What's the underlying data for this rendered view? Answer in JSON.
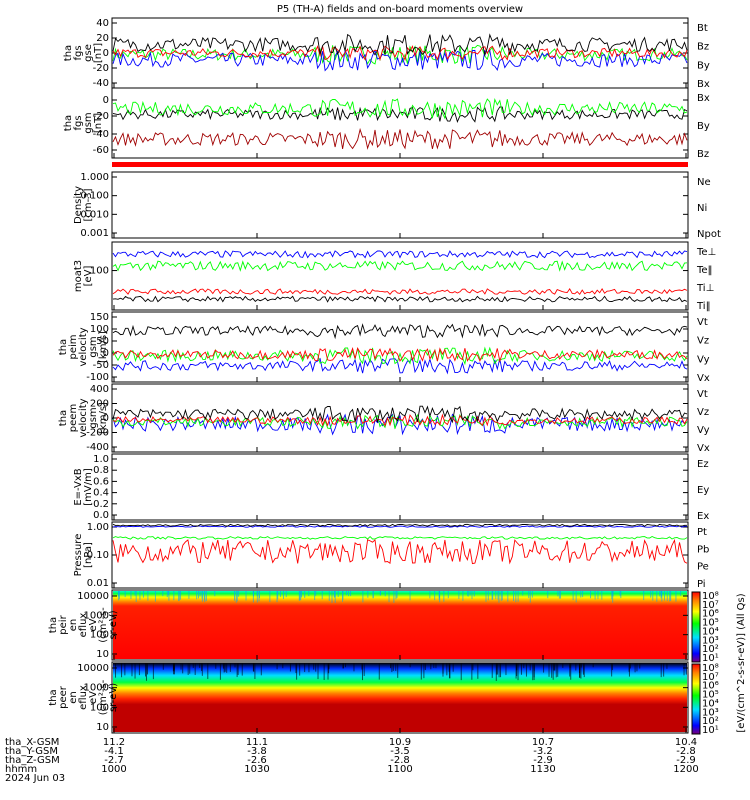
{
  "title": "P5 (TH-A) fields and on-board moments overview",
  "colors": {
    "black": "#000000",
    "red": "#ff0000",
    "green": "#00ff00",
    "blue": "#0000ff",
    "darkred": "#a00000"
  },
  "chart_data": {
    "type": "line",
    "x_axis": {
      "label_rows": [
        "tha_X-GSM",
        "tha_Y-GSM",
        "tha_Z-GSM",
        "hhmm",
        "2024 Jun 03"
      ],
      "ticks": [
        {
          "x": "11.2",
          "y": "-4.1",
          "z": "-2.7",
          "hhmm": "1000"
        },
        {
          "x": "11.1",
          "y": "-3.8",
          "z": "-2.6",
          "hhmm": "1030"
        },
        {
          "x": "10.9",
          "y": "-3.5",
          "z": "-2.8",
          "hhmm": "1100"
        },
        {
          "x": "10.7",
          "y": "-3.2",
          "z": "-2.9",
          "hhmm": "1130"
        },
        {
          "x": "10.4",
          "y": "-2.8",
          "z": "-2.9",
          "hhmm": "1200"
        }
      ]
    },
    "panels": [
      {
        "ylabel": [
          "tha",
          "fgs",
          "gse",
          "[nT]"
        ],
        "ylim": [
          -40,
          50
        ],
        "yticks": [
          "40",
          "20",
          "0",
          "-20",
          "-40"
        ],
        "legend": [
          {
            "name": "Bt",
            "color": "#000000"
          },
          {
            "name": "Bz",
            "color": "#ff0000"
          },
          {
            "name": "By",
            "color": "#00ff00"
          },
          {
            "name": "Bx",
            "color": "#0000ff"
          }
        ],
        "series": [
          {
            "color": "#00ff00",
            "base": 3,
            "amp": 8
          },
          {
            "color": "#0000ff",
            "base": -4,
            "amp": 9
          },
          {
            "color": "#ff0000",
            "base": 5,
            "amp": 6
          },
          {
            "color": "#000000",
            "base": 16,
            "amp": 9
          }
        ]
      },
      {
        "ylabel": [
          "tha",
          "fgs",
          "gsm",
          "[nT]"
        ],
        "ylim": [
          -75,
          10
        ],
        "yticks": [
          "-20",
          "-40",
          "-60",
          "0"
        ],
        "legend": [
          {
            "name": "Bx",
            "color": "#000000"
          },
          {
            "name": "By",
            "color": "#00ff00"
          },
          {
            "name": "Bz",
            "color": "#a00000"
          }
        ],
        "series": [
          {
            "color": "#a00000",
            "base": -52,
            "amp": 8
          },
          {
            "color": "#000000",
            "base": -22,
            "amp": 6
          },
          {
            "color": "#00ff00",
            "base": -15,
            "amp": 8
          }
        ]
      },
      {
        "ylabel": [
          "Density",
          "[cm-3]"
        ],
        "ylim": [
          0.001,
          1.0
        ],
        "log": true,
        "yticks": [
          "1.000",
          "0.100",
          "0.010",
          "0.001"
        ],
        "legend": [
          {
            "name": "Ne",
            "color": "#ff0000"
          },
          {
            "name": "Ni",
            "color": "#000000"
          },
          {
            "name": "Npot",
            "color": "#0000ff"
          }
        ],
        "series": []
      },
      {
        "ylabel": [
          "moat3",
          "[eV]"
        ],
        "ylim": [
          10,
          900
        ],
        "log": true,
        "yticks": [
          "100"
        ],
        "legend": [
          {
            "name": "Te⊥",
            "color": "#ff0000"
          },
          {
            "name": "Te‖",
            "color": "#000000"
          },
          {
            "name": "Ti⊥",
            "color": "#ff0000"
          },
          {
            "name": "Ti‖",
            "color": "#00ff00"
          }
        ],
        "series": [
          {
            "color": "#0000ff",
            "base": 0.82,
            "amp": 0.05
          },
          {
            "color": "#00ff00",
            "base": 0.65,
            "amp": 0.07
          },
          {
            "color": "#ff0000",
            "base": 0.27,
            "amp": 0.04
          },
          {
            "color": "#000000",
            "base": 0.16,
            "amp": 0.04
          }
        ]
      },
      {
        "ylabel": [
          "tha",
          "peim",
          "velocity",
          "gsm",
          "[km/s]"
        ],
        "ylim": [
          -120,
          160
        ],
        "yticks": [
          "150",
          "100",
          "50",
          "0",
          "-50",
          "-100"
        ],
        "legend": [
          {
            "name": "Vt",
            "color": "#000000"
          },
          {
            "name": "Vz",
            "color": "#ff0000"
          },
          {
            "name": "Vy",
            "color": "#00ff00"
          },
          {
            "name": "Vx",
            "color": "#0000ff"
          }
        ],
        "series": [
          {
            "color": "#0000ff",
            "base": -55,
            "amp": 20
          },
          {
            "color": "#00ff00",
            "base": -15,
            "amp": 22
          },
          {
            "color": "#ff0000",
            "base": -10,
            "amp": 18
          },
          {
            "color": "#000000",
            "base": 85,
            "amp": 18
          }
        ]
      },
      {
        "ylabel": [
          "tha",
          "peem",
          "velocity",
          "gsm",
          "[km/s]"
        ],
        "ylim": [
          -400,
          480
        ],
        "yticks": [
          "400",
          "200",
          "0",
          "-200",
          "-400"
        ],
        "legend": [
          {
            "name": "Vt",
            "color": "#000000"
          },
          {
            "name": "Vz",
            "color": "#ff0000"
          },
          {
            "name": "Vy",
            "color": "#00ff00"
          },
          {
            "name": "Vx",
            "color": "#0000ff"
          }
        ],
        "series": [
          {
            "color": "#0000ff",
            "base": -40,
            "amp": 90
          },
          {
            "color": "#00ff00",
            "base": -10,
            "amp": 60
          },
          {
            "color": "#ff0000",
            "base": 10,
            "amp": 45
          },
          {
            "color": "#000000",
            "base": 90,
            "amp": 70
          }
        ]
      },
      {
        "ylabel": [
          "E=-VxB",
          "[mV/m]"
        ],
        "ylim": [
          0,
          1.0
        ],
        "yticks": [
          "1.0",
          "0.8",
          "0.6",
          "0.4",
          "0.2",
          "0.0"
        ],
        "legend": [
          {
            "name": "Ez",
            "color": "#ff0000"
          },
          {
            "name": "Ey",
            "color": "#00ff00"
          },
          {
            "name": "Ex",
            "color": "#0000ff"
          }
        ],
        "series": []
      },
      {
        "ylabel": [
          "Pressure",
          "[nPa]"
        ],
        "ylim": [
          0.005,
          1.2
        ],
        "log": true,
        "yticks": [
          "1.00",
          "0.10",
          "0.01"
        ],
        "legend": [
          {
            "name": "Pt",
            "color": "#000000"
          },
          {
            "name": "Pb",
            "color": "#ff0000"
          },
          {
            "name": "Pe",
            "color": "#00ff00"
          },
          {
            "name": "Pi",
            "color": "#0000ff"
          }
        ],
        "series": [
          {
            "color": "#ff0000",
            "base": 0.55,
            "amp": 0.18
          },
          {
            "color": "#00ff00",
            "base": 0.76,
            "amp": 0.02
          },
          {
            "color": "#0000ff",
            "base": 0.93,
            "amp": 0.01
          },
          {
            "color": "#000000",
            "base": 0.95,
            "amp": 0.015
          }
        ]
      },
      {
        "ylabel": [
          "tha",
          "peir",
          "en",
          "eflux",
          "eV",
          "(cm²-s-",
          "sr-eV)"
        ],
        "type": "heatmap",
        "yticks": [
          "10000",
          "1000",
          "100",
          "10"
        ]
      },
      {
        "ylabel": [
          "tha",
          "peer",
          "en",
          "eflux",
          "eV",
          "(cm²-s-",
          "sr-eV)"
        ],
        "type": "heatmap",
        "yticks": [
          "10000",
          "1000",
          "100",
          "10"
        ]
      }
    ],
    "colorbar": {
      "label": "[eV/(cm^2-s-sr-eV)] (All Qs)",
      "ticks": [
        "10⁸",
        "10⁷",
        "10⁶",
        "10⁵",
        "10⁴",
        "10³",
        "10²",
        "10¹"
      ],
      "ticks2": [
        "10⁸",
        "10⁷",
        "10⁶",
        "10⁵",
        "10⁴",
        "10³",
        "10²",
        "10¹"
      ]
    }
  }
}
